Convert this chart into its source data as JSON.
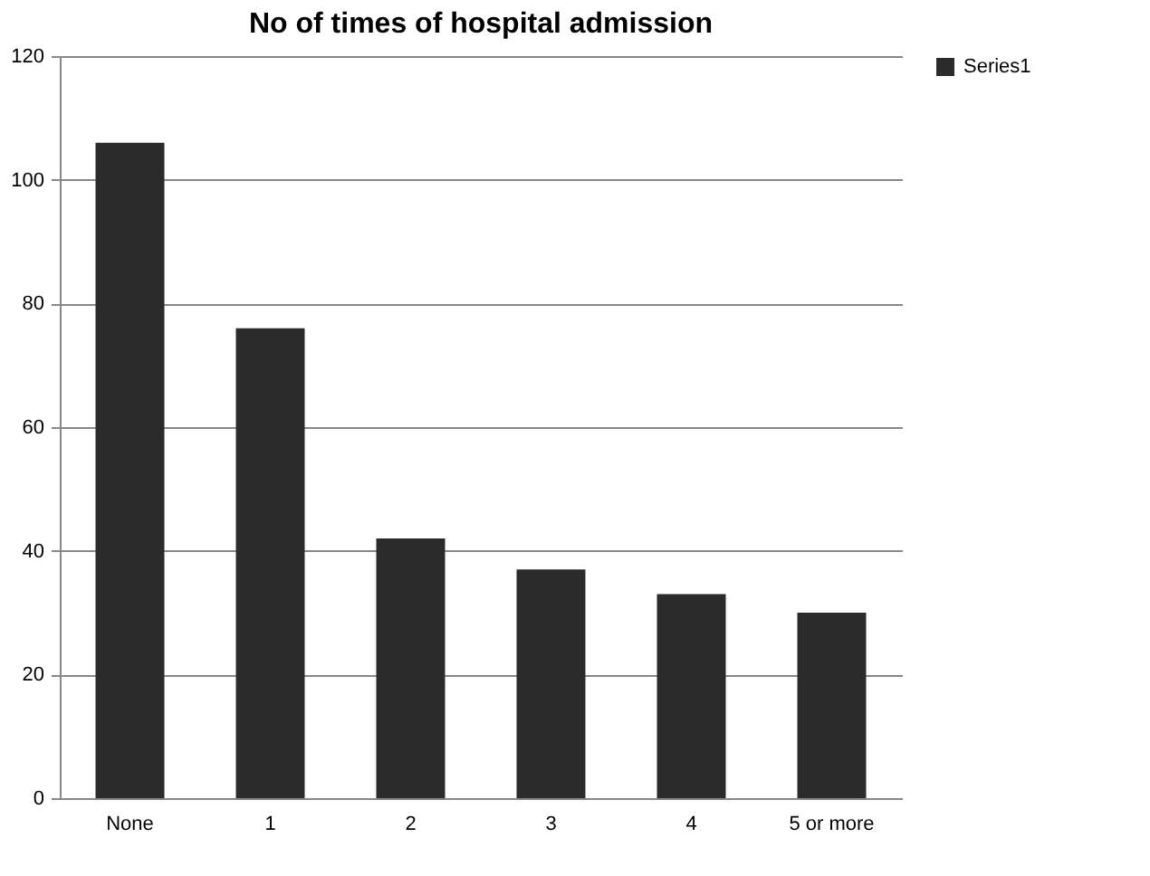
{
  "chart_data": {
    "type": "bar",
    "title": "No of times of hospital admission",
    "categories": [
      "None",
      "1",
      "2",
      "3",
      "4",
      "5 or more"
    ],
    "series": [
      {
        "name": "Series1",
        "color": "#2b2b2b",
        "values": [
          106,
          76,
          42,
          37,
          33,
          30
        ]
      }
    ],
    "ylim": [
      0,
      120
    ],
    "yticks": [
      0,
      20,
      40,
      60,
      80,
      100,
      120
    ],
    "grid": "y",
    "legend": "right"
  }
}
